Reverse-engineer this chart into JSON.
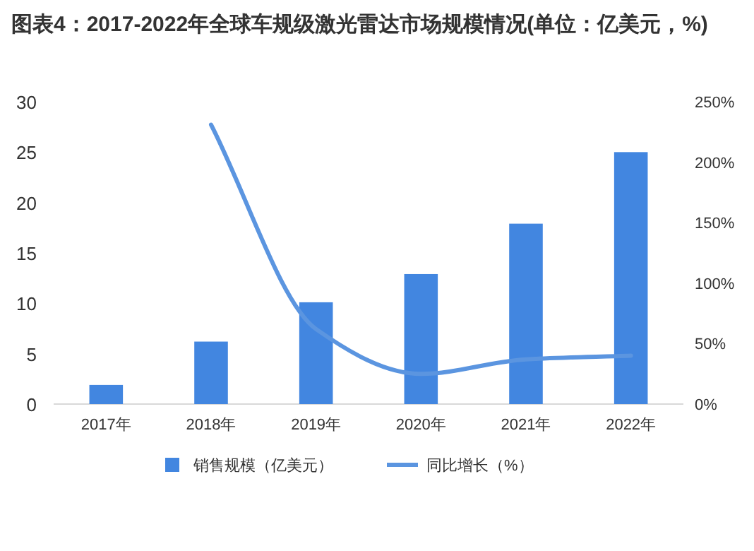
{
  "chart_data": {
    "type": "bar",
    "title": "图表4：2017-2022年全球车规级激光雷达市场规模情况(单位：亿美元，%)",
    "categories": [
      "2017年",
      "2018年",
      "2019年",
      "2020年",
      "2021年",
      "2022年"
    ],
    "series": [
      {
        "name": "销售规模（亿美元）",
        "color": "#4286e0",
        "values": [
          1.9,
          6.2,
          10.1,
          12.9,
          17.9,
          25.0
        ]
      },
      {
        "name": "同比增长（%）",
        "type": "line",
        "axis": "y2",
        "color": "#5b95e0",
        "values": [
          null,
          231,
          62,
          25,
          37,
          40
        ]
      }
    ],
    "ylim": [
      0,
      30
    ],
    "yticks": [
      0,
      5,
      10,
      15,
      20,
      25,
      30
    ],
    "y2lim": [
      0,
      250
    ],
    "y2ticks": [
      {
        "value": 0,
        "label": "0%"
      },
      {
        "value": 50,
        "label": "50%"
      },
      {
        "value": 100,
        "label": "100%"
      },
      {
        "value": 150,
        "label": "150%"
      },
      {
        "value": 200,
        "label": "200%"
      },
      {
        "value": 250,
        "label": "250%"
      }
    ],
    "legend": "bottom",
    "grid": false,
    "marker": "none",
    "line_style": "solid"
  }
}
